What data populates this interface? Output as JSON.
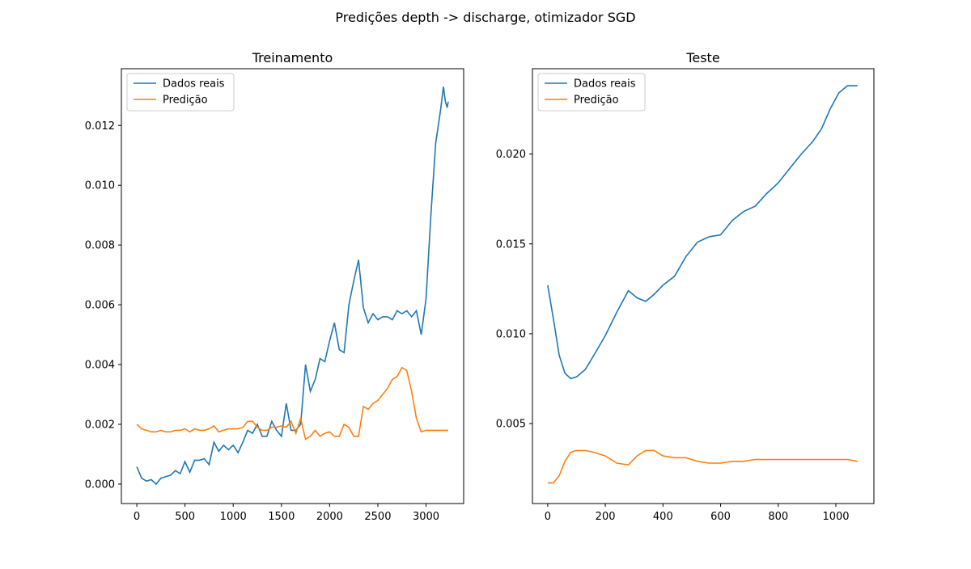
{
  "suptitle": "Predições depth -> discharge, otimizador SGD",
  "colors": {
    "real": "#1f77b4",
    "pred": "#ff7f0e"
  },
  "chart_data": [
    {
      "type": "line",
      "title": "Treinamento",
      "xlabel": "",
      "ylabel": "",
      "xlim": [
        -160,
        3390
      ],
      "ylim": [
        -0.00065,
        0.0139
      ],
      "xticks": [
        0,
        500,
        1000,
        1500,
        2000,
        2500,
        3000
      ],
      "yticks": [
        0.0,
        0.002,
        0.004,
        0.006,
        0.008,
        0.01,
        0.012
      ],
      "ytick_labels": [
        "0.000",
        "0.002",
        "0.004",
        "0.006",
        "0.008",
        "0.010",
        "0.012"
      ],
      "grid": false,
      "legend": "top-left",
      "series": [
        {
          "name": "Dados reais",
          "x": [
            0,
            50,
            100,
            150,
            200,
            250,
            300,
            350,
            400,
            450,
            500,
            550,
            600,
            650,
            700,
            750,
            800,
            850,
            900,
            950,
            1000,
            1050,
            1100,
            1150,
            1200,
            1250,
            1300,
            1350,
            1400,
            1450,
            1500,
            1550,
            1600,
            1650,
            1700,
            1750,
            1800,
            1850,
            1900,
            1950,
            2000,
            2050,
            2100,
            2150,
            2200,
            2250,
            2300,
            2350,
            2400,
            2450,
            2500,
            2550,
            2600,
            2650,
            2700,
            2750,
            2800,
            2850,
            2900,
            2950,
            3000,
            3050,
            3100,
            3150,
            3180,
            3200,
            3220,
            3230
          ],
          "y": [
            0.00058,
            0.0002,
            0.0001,
            0.00015,
            0.0,
            0.0002,
            0.00025,
            0.0003,
            0.00045,
            0.00035,
            0.00075,
            0.0004,
            0.0008,
            0.0008,
            0.00085,
            0.00065,
            0.0014,
            0.0011,
            0.0013,
            0.00115,
            0.0013,
            0.00105,
            0.0014,
            0.0018,
            0.0017,
            0.002,
            0.0016,
            0.0016,
            0.0021,
            0.0018,
            0.0016,
            0.0027,
            0.0018,
            0.0018,
            0.002,
            0.004,
            0.0031,
            0.0035,
            0.0042,
            0.0041,
            0.0048,
            0.0054,
            0.0045,
            0.0044,
            0.006,
            0.0068,
            0.0075,
            0.0059,
            0.0054,
            0.0057,
            0.0055,
            0.0056,
            0.0056,
            0.0055,
            0.0058,
            0.0057,
            0.0058,
            0.0056,
            0.0058,
            0.005,
            0.0062,
            0.009,
            0.0114,
            0.0125,
            0.0133,
            0.0128,
            0.0126,
            0.0128
          ]
        },
        {
          "name": "Predição",
          "x": [
            0,
            50,
            100,
            150,
            200,
            250,
            300,
            350,
            400,
            450,
            500,
            550,
            600,
            650,
            700,
            750,
            800,
            850,
            900,
            950,
            1000,
            1050,
            1100,
            1150,
            1200,
            1250,
            1300,
            1350,
            1400,
            1450,
            1500,
            1550,
            1600,
            1650,
            1700,
            1750,
            1800,
            1850,
            1900,
            1950,
            2000,
            2050,
            2100,
            2150,
            2200,
            2250,
            2300,
            2350,
            2400,
            2450,
            2500,
            2550,
            2600,
            2650,
            2700,
            2750,
            2800,
            2850,
            2900,
            2950,
            3000,
            3050,
            3100,
            3150,
            3180,
            3200,
            3220,
            3230
          ],
          "y": [
            0.002,
            0.00185,
            0.0018,
            0.00175,
            0.00175,
            0.0018,
            0.00175,
            0.00175,
            0.0018,
            0.0018,
            0.00185,
            0.00175,
            0.00185,
            0.0018,
            0.0018,
            0.00185,
            0.00195,
            0.00175,
            0.0018,
            0.00185,
            0.00185,
            0.00185,
            0.0019,
            0.0021,
            0.0021,
            0.0019,
            0.0018,
            0.0018,
            0.0019,
            0.0019,
            0.00195,
            0.0019,
            0.0021,
            0.0017,
            0.0022,
            0.0015,
            0.0016,
            0.0018,
            0.0016,
            0.0017,
            0.00175,
            0.0016,
            0.0016,
            0.002,
            0.0019,
            0.0016,
            0.0016,
            0.0026,
            0.0025,
            0.0027,
            0.0028,
            0.003,
            0.0032,
            0.0035,
            0.0036,
            0.0039,
            0.0038,
            0.0031,
            0.0022,
            0.00175,
            0.0018,
            0.0018,
            0.0018,
            0.0018,
            0.0018,
            0.0018,
            0.0018,
            0.0018
          ]
        }
      ]
    },
    {
      "type": "line",
      "title": "Teste",
      "xlabel": "",
      "ylabel": "",
      "xlim": [
        -53,
        1132
      ],
      "ylim": [
        0.00055,
        0.02475
      ],
      "xticks": [
        0,
        200,
        400,
        600,
        800,
        1000
      ],
      "yticks": [
        0.005,
        0.01,
        0.015,
        0.02
      ],
      "ytick_labels": [
        "0.005",
        "0.010",
        "0.015",
        "0.020"
      ],
      "grid": false,
      "legend": "top-left",
      "series": [
        {
          "name": "Dados reais",
          "x": [
            0,
            20,
            40,
            60,
            80,
            100,
            130,
            160,
            200,
            240,
            280,
            310,
            340,
            370,
            400,
            440,
            480,
            520,
            560,
            600,
            640,
            680,
            720,
            760,
            800,
            840,
            880,
            920,
            950,
            980,
            1010,
            1040,
            1075
          ],
          "y": [
            0.0127,
            0.0108,
            0.0088,
            0.0078,
            0.0075,
            0.0076,
            0.008,
            0.0088,
            0.0099,
            0.0112,
            0.0124,
            0.012,
            0.0118,
            0.0122,
            0.0127,
            0.0132,
            0.0143,
            0.0151,
            0.0154,
            0.0155,
            0.0163,
            0.0168,
            0.0171,
            0.0178,
            0.0184,
            0.0192,
            0.02,
            0.0207,
            0.0214,
            0.0225,
            0.0234,
            0.0238,
            0.0238
          ]
        },
        {
          "name": "Predição",
          "x": [
            0,
            20,
            40,
            60,
            80,
            100,
            130,
            160,
            200,
            240,
            280,
            310,
            340,
            370,
            400,
            440,
            480,
            520,
            560,
            600,
            640,
            680,
            720,
            760,
            800,
            840,
            880,
            920,
            950,
            980,
            1010,
            1040,
            1075
          ],
          "y": [
            0.0017,
            0.0017,
            0.0021,
            0.0029,
            0.0034,
            0.0035,
            0.0035,
            0.0034,
            0.0032,
            0.0028,
            0.0027,
            0.0032,
            0.0035,
            0.0035,
            0.0032,
            0.0031,
            0.0031,
            0.0029,
            0.0028,
            0.0028,
            0.0029,
            0.0029,
            0.003,
            0.003,
            0.003,
            0.003,
            0.003,
            0.003,
            0.003,
            0.003,
            0.003,
            0.003,
            0.0029
          ]
        }
      ]
    }
  ]
}
